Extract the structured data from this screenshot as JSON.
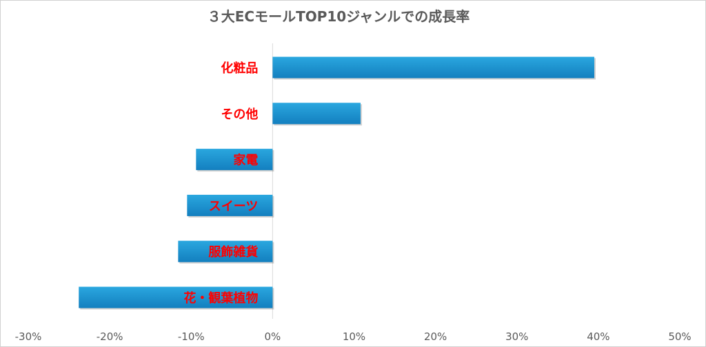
{
  "chart_data": {
    "type": "bar",
    "orientation": "horizontal",
    "title": "３大ECモールTOP10ジャンルでの成長率",
    "categories": [
      "化粧品",
      "その他",
      "家電",
      "スイーツ",
      "服飾雑貨",
      "花・観葉植物"
    ],
    "values": [
      39.5,
      10.8,
      -9.4,
      -10.5,
      -11.6,
      -23.8
    ],
    "xlim": [
      -30,
      50
    ],
    "x_ticks": [
      "-30%",
      "-20%",
      "-10%",
      "0%",
      "10%",
      "20%",
      "30%",
      "40%",
      "50%"
    ],
    "xlabel": "",
    "ylabel": "",
    "grid": false,
    "legend": "none",
    "colors": {
      "bar_top": "#2aa7df",
      "bar_bottom": "#137fbf",
      "category_label": "#ff0000",
      "axis_text": "#595959",
      "title": "#595959",
      "zero_line": "#d9d9d9"
    }
  }
}
